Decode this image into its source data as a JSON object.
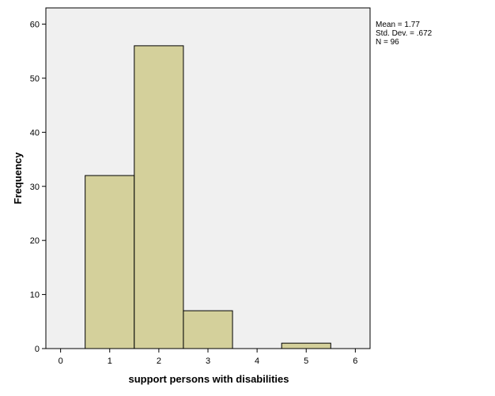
{
  "chart_data": {
    "type": "bar",
    "bins": [
      {
        "x_start": 0.5,
        "x_end": 1.5,
        "value": 32
      },
      {
        "x_start": 1.5,
        "x_end": 2.5,
        "value": 56
      },
      {
        "x_start": 2.5,
        "x_end": 3.5,
        "value": 7
      },
      {
        "x_start": 4.5,
        "x_end": 5.5,
        "value": 1
      }
    ],
    "xlabel": "support persons with disabilities",
    "ylabel": "Frequency",
    "xlim": [
      -0.3,
      6.3
    ],
    "ylim": [
      0,
      63
    ],
    "x_ticks": [
      0,
      1,
      2,
      3,
      4,
      5,
      6
    ],
    "y_ticks": [
      0,
      10,
      20,
      30,
      40,
      50,
      60
    ],
    "grid": false,
    "colors": {
      "bar_fill": "#d4d09b",
      "bar_stroke": "#000000",
      "plot_bg": "#f0f0f0"
    },
    "stats": {
      "mean": "Mean = 1.77",
      "std_dev": "Std. Dev. = .672",
      "n": "N = 96"
    }
  }
}
